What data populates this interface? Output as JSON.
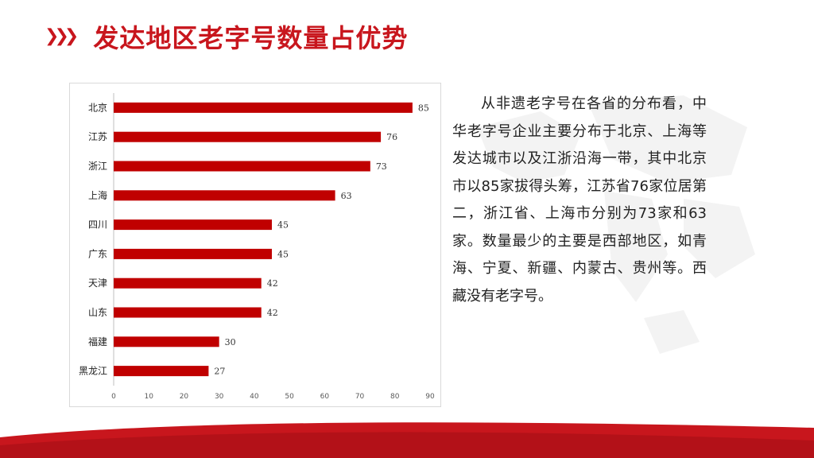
{
  "header": {
    "title": "发达地区老字号数量占优势"
  },
  "colors": {
    "accent": "#c8161d",
    "bar": "#c00000"
  },
  "text": {
    "paragraph": "从非遗老字号在各省的分布看，中华老字号企业主要分布于北京、上海等发达城市以及江浙沿海一带，其中北京市以85家拔得头筹，江苏省76家位居第二，浙江省、上海市分别为73家和63家。数量最少的主要是西部地区，如青海、宁夏、新疆、内蒙古、贵州等。西藏没有老字号。"
  },
  "chart_data": {
    "type": "bar",
    "orientation": "horizontal",
    "categories": [
      "北京",
      "江苏",
      "浙江",
      "上海",
      "四川",
      "广东",
      "天津",
      "山东",
      "福建",
      "黑龙江"
    ],
    "values": [
      85,
      76,
      73,
      63,
      45,
      45,
      42,
      42,
      30,
      27
    ],
    "xlim": [
      0,
      90
    ],
    "xticks": [
      0,
      10,
      20,
      30,
      40,
      50,
      60,
      70,
      80,
      90
    ],
    "data_labels": true,
    "grid": false,
    "legend": "none"
  }
}
